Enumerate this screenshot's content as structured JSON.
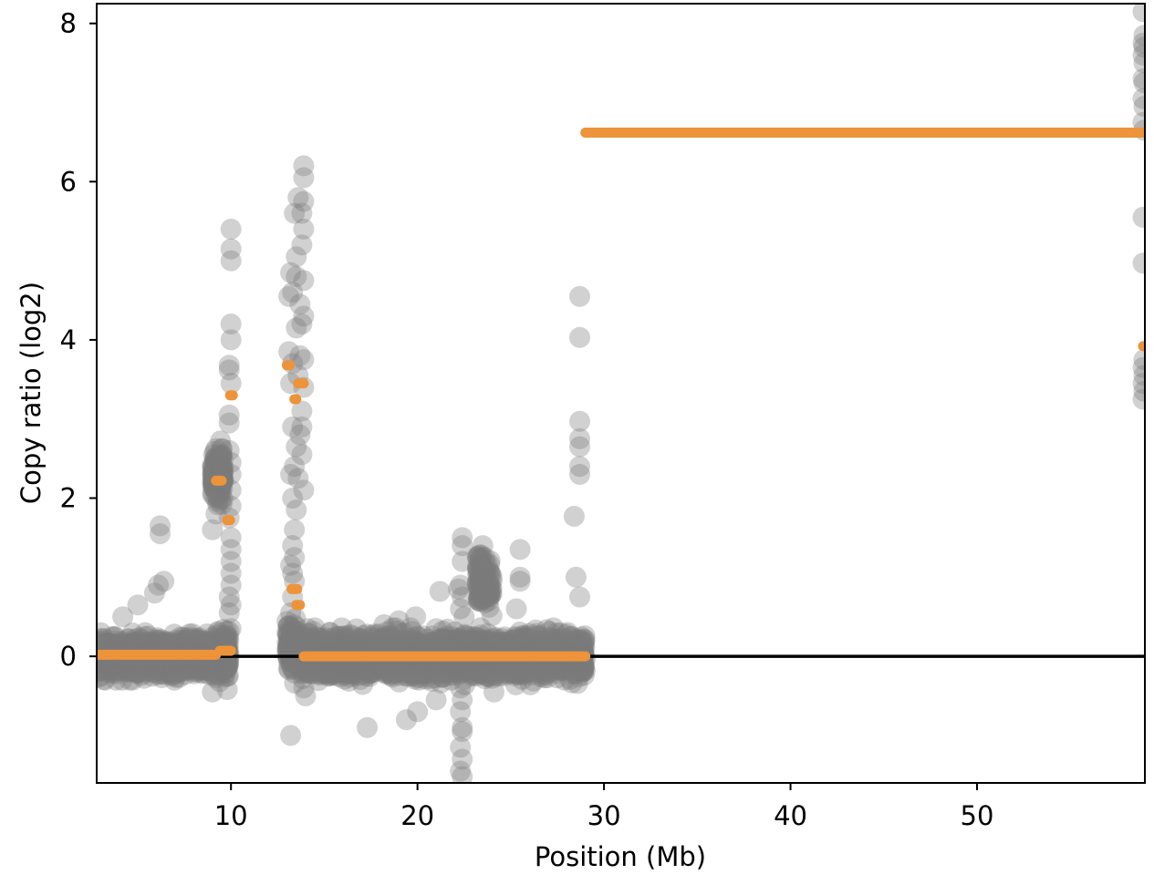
{
  "chart_data": {
    "type": "scatter",
    "title": "",
    "xlabel": "Position (Mb)",
    "ylabel": "Copy ratio (log2)",
    "xlim": [
      2.8,
      59.0
    ],
    "ylim": [
      -1.6,
      8.25
    ],
    "xticks": [
      10,
      20,
      30,
      40,
      50
    ],
    "yticks": [
      0,
      2,
      4,
      6,
      8
    ],
    "grid": false,
    "legend": "none",
    "baseline": 0,
    "colors": {
      "bins": "#7a7a7a",
      "segments": "#ed9339",
      "baseline": "#000000",
      "frame": "#000000"
    },
    "bin_clusters": [
      {
        "x": [
          2.8,
          9.3
        ],
        "ymean": 0.0,
        "spread": 0.1,
        "count": 1500
      },
      {
        "x": [
          9.3,
          9.9
        ],
        "ymean": 0.05,
        "spread": 0.15,
        "count": 160
      },
      {
        "x": [
          13.0,
          13.6
        ],
        "ymean": 0.1,
        "spread": 0.15,
        "count": 120
      },
      {
        "x": [
          13.8,
          29.0
        ],
        "ymean": 0.0,
        "spread": 0.12,
        "count": 3200
      },
      {
        "x": [
          9.0,
          9.6
        ],
        "ymean": 2.3,
        "spread": 0.15,
        "count": 140
      },
      {
        "x": [
          23.2,
          24.0
        ],
        "ymean": 0.95,
        "spread": 0.15,
        "count": 110
      }
    ],
    "bins": [
      {
        "x": 5.0,
        "y": 0.65
      },
      {
        "x": 4.2,
        "y": 0.5
      },
      {
        "x": 5.9,
        "y": 0.8
      },
      {
        "x": 6.2,
        "y": 1.65
      },
      {
        "x": 6.2,
        "y": 1.55
      },
      {
        "x": 6.4,
        "y": 0.95
      },
      {
        "x": 6.1,
        "y": 0.9
      },
      {
        "x": 9.0,
        "y": -0.45
      },
      {
        "x": 9.8,
        "y": -0.42
      },
      {
        "x": 9.0,
        "y": 1.6
      },
      {
        "x": 9.2,
        "y": 1.8
      },
      {
        "x": 10.0,
        "y": 5.4
      },
      {
        "x": 10.0,
        "y": 5.15
      },
      {
        "x": 10.0,
        "y": 5.0
      },
      {
        "x": 10.0,
        "y": 4.2
      },
      {
        "x": 10.0,
        "y": 4.0
      },
      {
        "x": 9.9,
        "y": 3.68
      },
      {
        "x": 9.9,
        "y": 3.62
      },
      {
        "x": 10.0,
        "y": 3.45
      },
      {
        "x": 9.9,
        "y": 3.05
      },
      {
        "x": 9.9,
        "y": 2.95
      },
      {
        "x": 9.9,
        "y": 2.6
      },
      {
        "x": 10.0,
        "y": 2.45
      },
      {
        "x": 10.0,
        "y": 2.3
      },
      {
        "x": 10.0,
        "y": 2.1
      },
      {
        "x": 10.0,
        "y": 1.9
      },
      {
        "x": 9.9,
        "y": 1.75
      },
      {
        "x": 10.0,
        "y": 1.5
      },
      {
        "x": 10.0,
        "y": 1.35
      },
      {
        "x": 10.0,
        "y": 1.2
      },
      {
        "x": 10.0,
        "y": 1.05
      },
      {
        "x": 10.0,
        "y": 0.9
      },
      {
        "x": 9.9,
        "y": 0.75
      },
      {
        "x": 10.0,
        "y": 0.65
      },
      {
        "x": 9.9,
        "y": 0.55
      },
      {
        "x": 10.0,
        "y": 0.35
      },
      {
        "x": 13.2,
        "y": -1.0
      },
      {
        "x": 13.9,
        "y": 6.2
      },
      {
        "x": 13.9,
        "y": 6.05
      },
      {
        "x": 13.6,
        "y": 5.8
      },
      {
        "x": 13.9,
        "y": 5.75
      },
      {
        "x": 13.4,
        "y": 5.6
      },
      {
        "x": 13.8,
        "y": 5.6
      },
      {
        "x": 13.9,
        "y": 5.4
      },
      {
        "x": 13.8,
        "y": 5.2
      },
      {
        "x": 13.5,
        "y": 5.05
      },
      {
        "x": 13.2,
        "y": 4.85
      },
      {
        "x": 13.5,
        "y": 4.8
      },
      {
        "x": 13.9,
        "y": 4.75
      },
      {
        "x": 13.3,
        "y": 4.6
      },
      {
        "x": 13.1,
        "y": 4.55
      },
      {
        "x": 13.7,
        "y": 4.45
      },
      {
        "x": 13.9,
        "y": 4.3
      },
      {
        "x": 13.8,
        "y": 4.2
      },
      {
        "x": 13.5,
        "y": 4.15
      },
      {
        "x": 13.1,
        "y": 3.85
      },
      {
        "x": 13.7,
        "y": 3.8
      },
      {
        "x": 13.9,
        "y": 3.75
      },
      {
        "x": 13.3,
        "y": 3.7
      },
      {
        "x": 13.6,
        "y": 3.55
      },
      {
        "x": 13.2,
        "y": 3.45
      },
      {
        "x": 13.9,
        "y": 3.4
      },
      {
        "x": 13.8,
        "y": 3.1
      },
      {
        "x": 13.3,
        "y": 2.9
      },
      {
        "x": 13.8,
        "y": 2.9
      },
      {
        "x": 13.7,
        "y": 2.8
      },
      {
        "x": 13.5,
        "y": 2.65
      },
      {
        "x": 13.8,
        "y": 2.55
      },
      {
        "x": 13.4,
        "y": 2.4
      },
      {
        "x": 13.2,
        "y": 2.3
      },
      {
        "x": 13.6,
        "y": 2.25
      },
      {
        "x": 13.9,
        "y": 2.1
      },
      {
        "x": 13.3,
        "y": 2.0
      },
      {
        "x": 13.5,
        "y": 1.85
      },
      {
        "x": 13.4,
        "y": 1.6
      },
      {
        "x": 13.3,
        "y": 1.4
      },
      {
        "x": 13.4,
        "y": 1.25
      },
      {
        "x": 13.2,
        "y": 1.15
      },
      {
        "x": 13.3,
        "y": 1.05
      },
      {
        "x": 13.4,
        "y": 0.95
      },
      {
        "x": 13.3,
        "y": 0.75
      },
      {
        "x": 13.2,
        "y": 0.55
      },
      {
        "x": 13.4,
        "y": 0.4
      },
      {
        "x": 13.3,
        "y": 0.25
      },
      {
        "x": 14.1,
        "y": 0.35
      },
      {
        "x": 14.0,
        "y": -0.5
      },
      {
        "x": 13.9,
        "y": -0.4
      },
      {
        "x": 17.3,
        "y": -0.9
      },
      {
        "x": 18.2,
        "y": 0.4
      },
      {
        "x": 19.0,
        "y": 0.45
      },
      {
        "x": 19.4,
        "y": -0.8
      },
      {
        "x": 19.9,
        "y": 0.5
      },
      {
        "x": 20.0,
        "y": -0.7
      },
      {
        "x": 21.0,
        "y": -0.55
      },
      {
        "x": 21.0,
        "y": 0.35
      },
      {
        "x": 21.2,
        "y": 0.82
      },
      {
        "x": 22.4,
        "y": 1.5
      },
      {
        "x": 22.4,
        "y": 1.4
      },
      {
        "x": 22.4,
        "y": 1.2
      },
      {
        "x": 22.3,
        "y": 0.9
      },
      {
        "x": 22.2,
        "y": 0.85
      },
      {
        "x": 22.4,
        "y": 0.75
      },
      {
        "x": 22.3,
        "y": 0.6
      },
      {
        "x": 22.5,
        "y": 0.5
      },
      {
        "x": 22.3,
        "y": -0.4
      },
      {
        "x": 22.4,
        "y": -0.55
      },
      {
        "x": 22.3,
        "y": -0.7
      },
      {
        "x": 22.4,
        "y": -0.9
      },
      {
        "x": 22.4,
        "y": -0.95
      },
      {
        "x": 22.3,
        "y": -1.15
      },
      {
        "x": 22.4,
        "y": -1.3
      },
      {
        "x": 22.3,
        "y": -1.45
      },
      {
        "x": 22.4,
        "y": -1.52
      },
      {
        "x": 23.5,
        "y": 1.4
      },
      {
        "x": 23.6,
        "y": 1.25
      },
      {
        "x": 23.7,
        "y": 0.8
      },
      {
        "x": 23.8,
        "y": 0.7
      },
      {
        "x": 24.1,
        "y": -0.45
      },
      {
        "x": 25.5,
        "y": 1.35
      },
      {
        "x": 25.5,
        "y": 1.0
      },
      {
        "x": 25.5,
        "y": 0.95
      },
      {
        "x": 25.3,
        "y": 0.6
      },
      {
        "x": 28.5,
        "y": 1.0
      },
      {
        "x": 28.4,
        "y": 1.77
      },
      {
        "x": 28.7,
        "y": 4.55
      },
      {
        "x": 28.7,
        "y": 4.03
      },
      {
        "x": 28.7,
        "y": 2.97
      },
      {
        "x": 28.7,
        "y": 2.75
      },
      {
        "x": 28.7,
        "y": 2.65
      },
      {
        "x": 28.7,
        "y": 2.4
      },
      {
        "x": 28.7,
        "y": 2.3
      },
      {
        "x": 28.7,
        "y": 0.75
      },
      {
        "x": 58.9,
        "y": 8.15
      },
      {
        "x": 58.95,
        "y": 7.85
      },
      {
        "x": 58.9,
        "y": 7.75
      },
      {
        "x": 58.95,
        "y": 7.7
      },
      {
        "x": 58.9,
        "y": 7.6
      },
      {
        "x": 58.95,
        "y": 7.5
      },
      {
        "x": 58.9,
        "y": 7.3
      },
      {
        "x": 58.95,
        "y": 7.25
      },
      {
        "x": 58.9,
        "y": 7.05
      },
      {
        "x": 58.95,
        "y": 6.95
      },
      {
        "x": 58.9,
        "y": 6.75
      },
      {
        "x": 58.95,
        "y": 6.65
      },
      {
        "x": 58.9,
        "y": 5.55
      },
      {
        "x": 58.9,
        "y": 4.97
      },
      {
        "x": 58.95,
        "y": 3.75
      },
      {
        "x": 58.9,
        "y": 3.65
      },
      {
        "x": 58.95,
        "y": 3.55
      },
      {
        "x": 58.9,
        "y": 3.45
      },
      {
        "x": 58.95,
        "y": 3.35
      },
      {
        "x": 58.9,
        "y": 3.25
      }
    ],
    "segments": [
      {
        "x0": 2.8,
        "x1": 9.2,
        "y": 0.02
      },
      {
        "x0": 9.2,
        "x1": 9.5,
        "y": 2.22
      },
      {
        "x0": 9.4,
        "x1": 10.0,
        "y": 0.07
      },
      {
        "x0": 9.8,
        "x1": 9.95,
        "y": 1.72
      },
      {
        "x0": 9.95,
        "x1": 10.1,
        "y": 3.3
      },
      {
        "x0": 13.0,
        "x1": 13.15,
        "y": 3.68
      },
      {
        "x0": 13.25,
        "x1": 13.55,
        "y": 0.85
      },
      {
        "x0": 13.4,
        "x1": 13.5,
        "y": 3.25
      },
      {
        "x0": 13.5,
        "x1": 13.7,
        "y": 0.65
      },
      {
        "x0": 13.6,
        "x1": 13.9,
        "y": 3.45
      },
      {
        "x0": 13.9,
        "x1": 29.0,
        "y": 0.0
      },
      {
        "x0": 29.0,
        "x1": 59.0,
        "y": 6.62
      },
      {
        "x0": 58.9,
        "x1": 59.0,
        "y": 3.92
      }
    ]
  }
}
